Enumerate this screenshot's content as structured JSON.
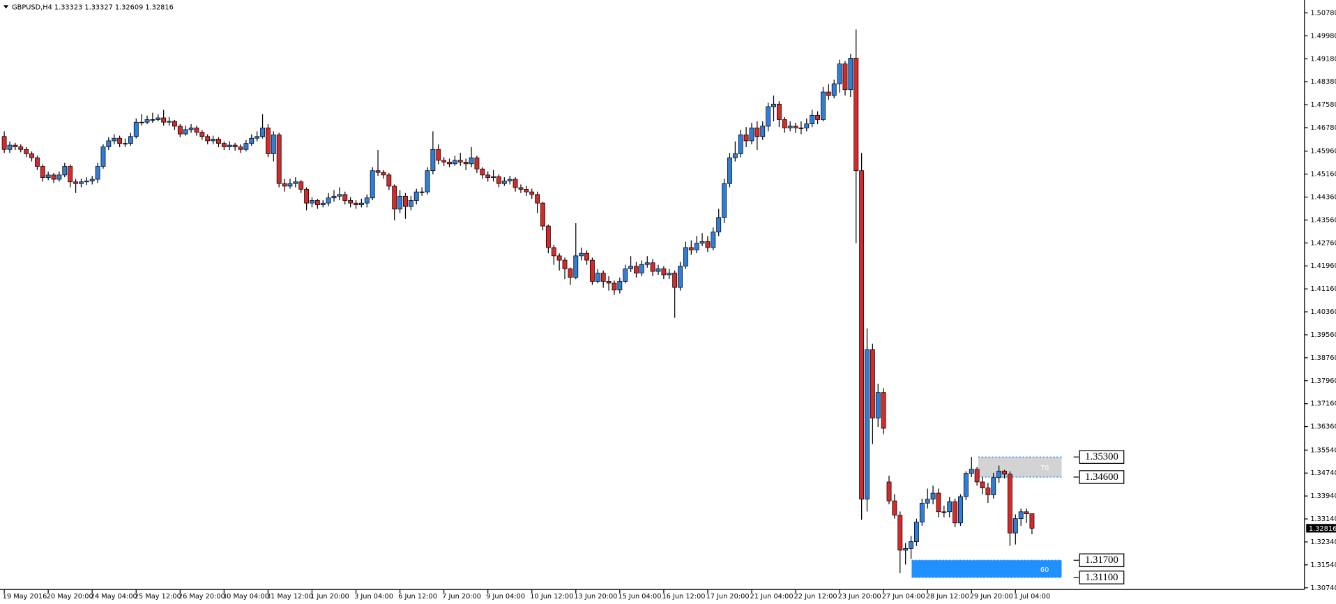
{
  "chart_data": {
    "type": "candlestick",
    "title": "GBPUSD,H4  1.33323 1.33327 1.32609 1.32816",
    "up_color": "#2f7ed8",
    "down_color": "#d42a2a",
    "ylim": [
      1.3068,
      1.5114
    ],
    "yticks": [
      {
        "value": 1.5078,
        "label": "1.50780"
      },
      {
        "value": 1.4998,
        "label": "1.49980"
      },
      {
        "value": 1.4918,
        "label": "1.49180"
      },
      {
        "value": 1.4838,
        "label": "1.48380"
      },
      {
        "value": 1.4758,
        "label": "1.47580"
      },
      {
        "value": 1.4678,
        "label": "1.46780"
      },
      {
        "value": 1.4596,
        "label": "1.45960"
      },
      {
        "value": 1.4516,
        "label": "1.45160"
      },
      {
        "value": 1.4436,
        "label": "1.44360"
      },
      {
        "value": 1.4356,
        "label": "1.43560"
      },
      {
        "value": 1.4276,
        "label": "1.42760"
      },
      {
        "value": 1.4196,
        "label": "1.41960"
      },
      {
        "value": 1.4116,
        "label": "1.41160"
      },
      {
        "value": 1.4036,
        "label": "1.40360"
      },
      {
        "value": 1.3956,
        "label": "1.39560"
      },
      {
        "value": 1.3876,
        "label": "1.38760"
      },
      {
        "value": 1.3796,
        "label": "1.37960"
      },
      {
        "value": 1.3716,
        "label": "1.37160"
      },
      {
        "value": 1.3636,
        "label": "1.36360"
      },
      {
        "value": 1.3554,
        "label": "1.35540"
      },
      {
        "value": 1.3474,
        "label": "1.34740"
      },
      {
        "value": 1.3394,
        "label": "1.33940"
      },
      {
        "value": 1.3314,
        "label": "1.33140"
      },
      {
        "value": 1.3234,
        "label": "1.32340"
      },
      {
        "value": 1.3154,
        "label": "1.31540"
      },
      {
        "value": 1.3074,
        "label": "1.30740"
      }
    ],
    "categories": [
      "19 May 2016",
      null,
      null,
      null,
      null,
      null,
      null,
      null,
      "20 May 20:00",
      null,
      null,
      null,
      null,
      null,
      null,
      null,
      "24 May 04:00",
      null,
      null,
      null,
      null,
      null,
      null,
      null,
      "25 May 12:00",
      null,
      null,
      null,
      null,
      null,
      null,
      null,
      "26 May 20:00",
      null,
      null,
      null,
      null,
      null,
      null,
      null,
      "30 May 04:00",
      null,
      null,
      null,
      null,
      null,
      null,
      null,
      "31 May 12:00",
      null,
      null,
      null,
      null,
      null,
      null,
      null,
      "1 Jun 20:00",
      null,
      null,
      null,
      null,
      null,
      null,
      null,
      "3 Jun 04:00",
      null,
      null,
      null,
      null,
      null,
      null,
      null,
      "6 Jun 12:00",
      null,
      null,
      null,
      null,
      null,
      null,
      null,
      "7 Jun 20:00",
      null,
      null,
      null,
      null,
      null,
      null,
      null,
      "9 Jun 04:00",
      null,
      null,
      null,
      null,
      null,
      null,
      null,
      "10 Jun 12:00",
      null,
      null,
      null,
      null,
      null,
      null,
      null,
      "13 Jun 20:00",
      null,
      null,
      null,
      null,
      null,
      null,
      null,
      "15 Jun 04:00",
      null,
      null,
      null,
      null,
      null,
      null,
      null,
      "16 Jun 12:00",
      null,
      null,
      null,
      null,
      null,
      null,
      null,
      "17 Jun 20:00",
      null,
      null,
      null,
      null,
      null,
      null,
      null,
      "21 Jun 04:00",
      null,
      null,
      null,
      null,
      null,
      null,
      null,
      "22 Jun 12:00",
      null,
      null,
      null,
      null,
      null,
      null,
      null,
      "23 Jun 20:00",
      null,
      null,
      null,
      null,
      null,
      null,
      null,
      "27 Jun 04:00",
      null,
      null,
      null,
      null,
      null,
      null,
      null,
      "28 Jun 12:00",
      null,
      null,
      null,
      null,
      null,
      null,
      null,
      "29 Jun 20:00",
      null,
      null,
      null,
      null,
      null,
      null,
      null,
      "1 Jul 04:00",
      null,
      null,
      null
    ],
    "ohlc": [
      [
        1.4647,
        1.4665,
        1.459,
        1.4602
      ],
      [
        1.4602,
        1.463,
        1.459,
        1.4617
      ],
      [
        1.4617,
        1.4625,
        1.46,
        1.4611
      ],
      [
        1.4611,
        1.462,
        1.4592,
        1.4602
      ],
      [
        1.4602,
        1.461,
        1.4575,
        1.4587
      ],
      [
        1.4587,
        1.4595,
        1.456,
        1.4573
      ],
      [
        1.4573,
        1.458,
        1.453,
        1.4543
      ],
      [
        1.4543,
        1.455,
        1.449,
        1.4504
      ],
      [
        1.4504,
        1.4525,
        1.4495,
        1.4513
      ],
      [
        1.4513,
        1.452,
        1.4485,
        1.4498
      ],
      [
        1.4498,
        1.4525,
        1.449,
        1.4513
      ],
      [
        1.4513,
        1.4555,
        1.4505,
        1.4543
      ],
      [
        1.4543,
        1.455,
        1.447,
        1.4489
      ],
      [
        1.4489,
        1.45,
        1.445,
        1.4483
      ],
      [
        1.4483,
        1.45,
        1.447,
        1.4489
      ],
      [
        1.4489,
        1.4505,
        1.4478,
        1.4492
      ],
      [
        1.4492,
        1.451,
        1.448,
        1.4498
      ],
      [
        1.4498,
        1.4555,
        1.4485,
        1.4543
      ],
      [
        1.4543,
        1.462,
        1.4535,
        1.4611
      ],
      [
        1.4611,
        1.4645,
        1.46,
        1.4632
      ],
      [
        1.4632,
        1.4655,
        1.462,
        1.4641
      ],
      [
        1.4641,
        1.465,
        1.461,
        1.4623
      ],
      [
        1.4623,
        1.464,
        1.461,
        1.4623
      ],
      [
        1.4623,
        1.466,
        1.4615,
        1.4647
      ],
      [
        1.4647,
        1.471,
        1.464,
        1.4697
      ],
      [
        1.4697,
        1.4725,
        1.4685,
        1.4697
      ],
      [
        1.4697,
        1.472,
        1.469,
        1.4706
      ],
      [
        1.4706,
        1.473,
        1.4695,
        1.4706
      ],
      [
        1.4706,
        1.4725,
        1.47,
        1.4712
      ],
      [
        1.4712,
        1.474,
        1.4685,
        1.4697
      ],
      [
        1.4697,
        1.4715,
        1.4685,
        1.47
      ],
      [
        1.47,
        1.4705,
        1.467,
        1.4683
      ],
      [
        1.4683,
        1.469,
        1.4645,
        1.4656
      ],
      [
        1.4656,
        1.4685,
        1.465,
        1.4671
      ],
      [
        1.4671,
        1.469,
        1.466,
        1.4677
      ],
      [
        1.4677,
        1.4685,
        1.465,
        1.4662
      ],
      [
        1.4662,
        1.467,
        1.4635,
        1.4647
      ],
      [
        1.4647,
        1.4655,
        1.462,
        1.4632
      ],
      [
        1.4632,
        1.465,
        1.462,
        1.4638
      ],
      [
        1.4638,
        1.4645,
        1.461,
        1.4623
      ],
      [
        1.4623,
        1.463,
        1.46,
        1.4611
      ],
      [
        1.4611,
        1.463,
        1.46,
        1.4617
      ],
      [
        1.4617,
        1.4625,
        1.4598,
        1.4611
      ],
      [
        1.4611,
        1.462,
        1.459,
        1.4602
      ],
      [
        1.4602,
        1.4635,
        1.4595,
        1.4623
      ],
      [
        1.4623,
        1.4655,
        1.4615,
        1.4641
      ],
      [
        1.4641,
        1.4665,
        1.463,
        1.4647
      ],
      [
        1.4647,
        1.4725,
        1.464,
        1.4677
      ],
      [
        1.4677,
        1.469,
        1.4575,
        1.4587
      ],
      [
        1.4587,
        1.4665,
        1.456,
        1.4653
      ],
      [
        1.4653,
        1.466,
        1.447,
        1.4483
      ],
      [
        1.4483,
        1.45,
        1.4455,
        1.4474
      ],
      [
        1.4474,
        1.45,
        1.4465,
        1.4483
      ],
      [
        1.4483,
        1.4505,
        1.447,
        1.4489
      ],
      [
        1.4489,
        1.4495,
        1.445,
        1.4463
      ],
      [
        1.4463,
        1.447,
        1.439,
        1.4415
      ],
      [
        1.4415,
        1.4435,
        1.44,
        1.4424
      ],
      [
        1.4424,
        1.443,
        1.4395,
        1.4409
      ],
      [
        1.4409,
        1.4425,
        1.44,
        1.4415
      ],
      [
        1.4415,
        1.445,
        1.4405,
        1.4433
      ],
      [
        1.4433,
        1.446,
        1.442,
        1.4439
      ],
      [
        1.4439,
        1.447,
        1.4425,
        1.4445
      ],
      [
        1.4445,
        1.4455,
        1.441,
        1.4424
      ],
      [
        1.4424,
        1.4435,
        1.44,
        1.4415
      ],
      [
        1.4415,
        1.4425,
        1.4395,
        1.4409
      ],
      [
        1.4409,
        1.443,
        1.44,
        1.4415
      ],
      [
        1.4415,
        1.4445,
        1.44,
        1.4433
      ],
      [
        1.4433,
        1.454,
        1.4425,
        1.4528
      ],
      [
        1.4528,
        1.46,
        1.451,
        1.4522
      ],
      [
        1.4522,
        1.453,
        1.45,
        1.4513
      ],
      [
        1.4513,
        1.452,
        1.446,
        1.4474
      ],
      [
        1.4474,
        1.448,
        1.4355,
        1.4394
      ],
      [
        1.4394,
        1.446,
        1.438,
        1.4439
      ],
      [
        1.4439,
        1.445,
        1.436,
        1.4403
      ],
      [
        1.4403,
        1.444,
        1.439,
        1.4424
      ],
      [
        1.4424,
        1.4465,
        1.441,
        1.4454
      ],
      [
        1.4454,
        1.447,
        1.444,
        1.4454
      ],
      [
        1.4454,
        1.454,
        1.4445,
        1.4528
      ],
      [
        1.4528,
        1.4665,
        1.4515,
        1.4602
      ],
      [
        1.4602,
        1.462,
        1.455,
        1.4564
      ],
      [
        1.4564,
        1.4575,
        1.4545,
        1.4558
      ],
      [
        1.4558,
        1.457,
        1.454,
        1.4552
      ],
      [
        1.4552,
        1.458,
        1.4545,
        1.4564
      ],
      [
        1.4564,
        1.459,
        1.4545,
        1.4558
      ],
      [
        1.4558,
        1.457,
        1.453,
        1.4552
      ],
      [
        1.4552,
        1.461,
        1.454,
        1.4573
      ],
      [
        1.4573,
        1.458,
        1.452,
        1.4534
      ],
      [
        1.4534,
        1.454,
        1.45,
        1.4513
      ],
      [
        1.4513,
        1.4525,
        1.449,
        1.4504
      ],
      [
        1.4504,
        1.453,
        1.449,
        1.4507
      ],
      [
        1.4507,
        1.4515,
        1.447,
        1.4483
      ],
      [
        1.4483,
        1.4505,
        1.4475,
        1.4492
      ],
      [
        1.4492,
        1.451,
        1.448,
        1.4498
      ],
      [
        1.4498,
        1.4505,
        1.4455,
        1.4469
      ],
      [
        1.4469,
        1.448,
        1.445,
        1.4463
      ],
      [
        1.4463,
        1.4475,
        1.444,
        1.4454
      ],
      [
        1.4454,
        1.4465,
        1.443,
        1.4445
      ],
      [
        1.4445,
        1.4455,
        1.438,
        1.4415
      ],
      [
        1.4415,
        1.442,
        1.432,
        1.4335
      ],
      [
        1.4335,
        1.434,
        1.424,
        1.426
      ],
      [
        1.426,
        1.427,
        1.42,
        1.4231
      ],
      [
        1.4231,
        1.424,
        1.418,
        1.4216
      ],
      [
        1.4216,
        1.4225,
        1.415,
        1.4186
      ],
      [
        1.4186,
        1.419,
        1.413,
        1.4156
      ],
      [
        1.4156,
        1.4345,
        1.415,
        1.4231
      ],
      [
        1.4231,
        1.426,
        1.4215,
        1.424
      ],
      [
        1.424,
        1.425,
        1.42,
        1.4216
      ],
      [
        1.4216,
        1.4225,
        1.413,
        1.4142
      ],
      [
        1.4142,
        1.4185,
        1.4135,
        1.4171
      ],
      [
        1.4171,
        1.418,
        1.412,
        1.4142
      ],
      [
        1.4142,
        1.416,
        1.411,
        1.4136
      ],
      [
        1.4136,
        1.4145,
        1.4095,
        1.4112
      ],
      [
        1.4112,
        1.4155,
        1.41,
        1.4142
      ],
      [
        1.4142,
        1.42,
        1.4135,
        1.4186
      ],
      [
        1.4186,
        1.423,
        1.4175,
        1.4195
      ],
      [
        1.4195,
        1.421,
        1.4155,
        1.4171
      ],
      [
        1.4171,
        1.4215,
        1.416,
        1.4201
      ],
      [
        1.4201,
        1.423,
        1.419,
        1.4207
      ],
      [
        1.4207,
        1.422,
        1.416,
        1.4177
      ],
      [
        1.4177,
        1.42,
        1.4165,
        1.4186
      ],
      [
        1.4186,
        1.4195,
        1.415,
        1.4165
      ],
      [
        1.4165,
        1.4185,
        1.415,
        1.4171
      ],
      [
        1.4171,
        1.418,
        1.4015,
        1.4121
      ],
      [
        1.4121,
        1.421,
        1.411,
        1.4195
      ],
      [
        1.4195,
        1.428,
        1.4185,
        1.426
      ],
      [
        1.426,
        1.4285,
        1.4235,
        1.4252
      ],
      [
        1.4252,
        1.43,
        1.424,
        1.4275
      ],
      [
        1.4275,
        1.431,
        1.4265,
        1.4281
      ],
      [
        1.4281,
        1.43,
        1.4245,
        1.426
      ],
      [
        1.426,
        1.433,
        1.425,
        1.4314
      ],
      [
        1.4314,
        1.4395,
        1.43,
        1.4365
      ],
      [
        1.4365,
        1.45,
        1.4345,
        1.4483
      ],
      [
        1.4483,
        1.459,
        1.447,
        1.4573
      ],
      [
        1.4573,
        1.463,
        1.456,
        1.4587
      ],
      [
        1.4587,
        1.467,
        1.4575,
        1.4653
      ],
      [
        1.4653,
        1.468,
        1.461,
        1.4632
      ],
      [
        1.4632,
        1.4695,
        1.462,
        1.4677
      ],
      [
        1.4677,
        1.47,
        1.46,
        1.4647
      ],
      [
        1.4647,
        1.47,
        1.4635,
        1.4683
      ],
      [
        1.4683,
        1.4765,
        1.4665,
        1.4751
      ],
      [
        1.4751,
        1.479,
        1.47,
        1.476
      ],
      [
        1.476,
        1.477,
        1.468,
        1.4706
      ],
      [
        1.4706,
        1.4715,
        1.466,
        1.4677
      ],
      [
        1.4677,
        1.47,
        1.4665,
        1.4683
      ],
      [
        1.4683,
        1.4695,
        1.466,
        1.4677
      ],
      [
        1.4677,
        1.47,
        1.4655,
        1.4677
      ],
      [
        1.4677,
        1.471,
        1.4665,
        1.4691
      ],
      [
        1.4691,
        1.474,
        1.468,
        1.4721
      ],
      [
        1.4721,
        1.4735,
        1.469,
        1.4706
      ],
      [
        1.4706,
        1.482,
        1.47,
        1.4802
      ],
      [
        1.4802,
        1.483,
        1.4775,
        1.479
      ],
      [
        1.479,
        1.4845,
        1.478,
        1.4831
      ],
      [
        1.4831,
        1.4915,
        1.48,
        1.49
      ],
      [
        1.49,
        1.491,
        1.479,
        1.481
      ],
      [
        1.481,
        1.4935,
        1.4785,
        1.492
      ],
      [
        1.492,
        1.502,
        1.4275,
        1.4528
      ],
      [
        1.4528,
        1.459,
        1.3311,
        1.3383
      ],
      [
        1.3383,
        1.3978,
        1.334,
        1.3904
      ],
      [
        1.3904,
        1.3925,
        1.3575,
        1.3666
      ],
      [
        1.3666,
        1.3785,
        1.3635,
        1.3755
      ],
      [
        1.3755,
        1.377,
        1.361,
        1.363
      ],
      [
        1.3443,
        1.3465,
        1.3365,
        1.3377
      ],
      [
        1.3377,
        1.34,
        1.3315,
        1.3327
      ],
      [
        1.3327,
        1.334,
        1.3125,
        1.3205
      ],
      [
        1.3205,
        1.323,
        1.3155,
        1.3211
      ],
      [
        1.3211,
        1.3255,
        1.3175,
        1.3235
      ],
      [
        1.3235,
        1.3315,
        1.322,
        1.3303
      ],
      [
        1.3303,
        1.3385,
        1.329,
        1.3369
      ],
      [
        1.3369,
        1.342,
        1.335,
        1.3383
      ],
      [
        1.3383,
        1.343,
        1.3365,
        1.3404
      ],
      [
        1.3404,
        1.342,
        1.332,
        1.3339
      ],
      [
        1.3339,
        1.336,
        1.332,
        1.3339
      ],
      [
        1.3339,
        1.339,
        1.332,
        1.3374
      ],
      [
        1.3374,
        1.3385,
        1.3285,
        1.33
      ],
      [
        1.33,
        1.34,
        1.329,
        1.3392
      ],
      [
        1.3392,
        1.348,
        1.338,
        1.3473
      ],
      [
        1.3473,
        1.353,
        1.346,
        1.3487
      ],
      [
        1.3487,
        1.3495,
        1.343,
        1.3443
      ],
      [
        1.3443,
        1.346,
        1.34,
        1.3422
      ],
      [
        1.3422,
        1.344,
        1.337,
        1.3398
      ],
      [
        1.3398,
        1.3475,
        1.3385,
        1.3458
      ],
      [
        1.3458,
        1.35,
        1.344,
        1.3481
      ],
      [
        1.3481,
        1.3485,
        1.3455,
        1.347
      ],
      [
        1.347,
        1.348,
        1.322,
        1.3265
      ],
      [
        1.3265,
        1.333,
        1.3225,
        1.3315
      ],
      [
        1.3315,
        1.335,
        1.329,
        1.3339
      ],
      [
        1.3339,
        1.335,
        1.33,
        1.3332
      ],
      [
        1.33323,
        1.33327,
        1.32609,
        1.32816
      ]
    ],
    "zones": [
      {
        "top": 1.353,
        "bottom": 1.346,
        "label": "70",
        "color": "#d3d3d3",
        "top_label": "1.35300",
        "bottom_label": "1.34600"
      },
      {
        "top": 1.317,
        "bottom": 1.311,
        "label": "60",
        "color": "#1e90ff",
        "top_label": "1.31700",
        "bottom_label": "1.31100"
      }
    ]
  }
}
